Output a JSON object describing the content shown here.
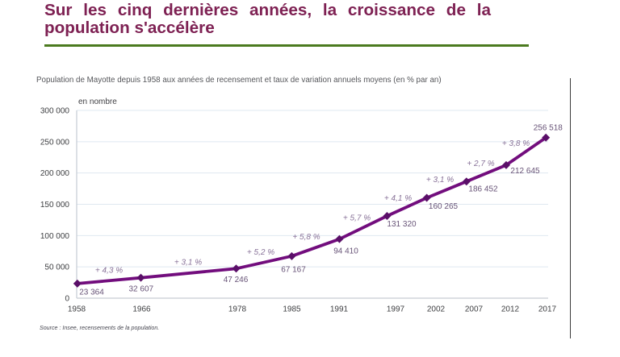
{
  "page": {
    "title": "Sur les cinq dernières années, la croissance de la population s'accélère",
    "title_color": "#7e2153",
    "underline_color": "#4b7a1f"
  },
  "chart_data": {
    "type": "line",
    "title": "Population de Mayotte depuis 1958 aux années de recensement et taux de variation annuels moyens (en % par an)",
    "unit_label": "en nombre",
    "x": [
      1958,
      1966,
      1978,
      1985,
      1991,
      1997,
      2002,
      2007,
      2012,
      2017
    ],
    "values": [
      23364,
      32607,
      47246,
      67167,
      94410,
      131320,
      160265,
      186452,
      212645,
      256518
    ],
    "point_labels": [
      "23 364",
      "32 607",
      "47 246",
      "67 167",
      "94 410",
      "131 320",
      "160 265",
      "186 452",
      "212 645",
      "256 518"
    ],
    "growth_labels": [
      "+ 4,3 %",
      "+ 3,1 %",
      "+ 5,2 %",
      "+ 5,8 %",
      "+ 5,7 %",
      "+ 4,1 %",
      "+ 3,1 %",
      "+ 2,7 %",
      "+ 3,8 %"
    ],
    "x_tick_labels": [
      "1958",
      "1966",
      "1978",
      "1985",
      "1991",
      "1997",
      "2002",
      "2007",
      "2012",
      "2017"
    ],
    "y_tick_labels": [
      "0",
      "50 000",
      "100 000",
      "150 000",
      "200 000",
      "250 000",
      "300 000"
    ],
    "xlabel": "",
    "ylabel": "en nombre",
    "ylim": [
      0,
      300000
    ],
    "y_step": 50000,
    "grid": true,
    "legend": "none",
    "line_color": "#720d7d",
    "marker_color": "#5a0f68",
    "point_label_color": "#675377",
    "growth_label_color": "#897399",
    "source": "Source : Insee, recensements de la population."
  }
}
